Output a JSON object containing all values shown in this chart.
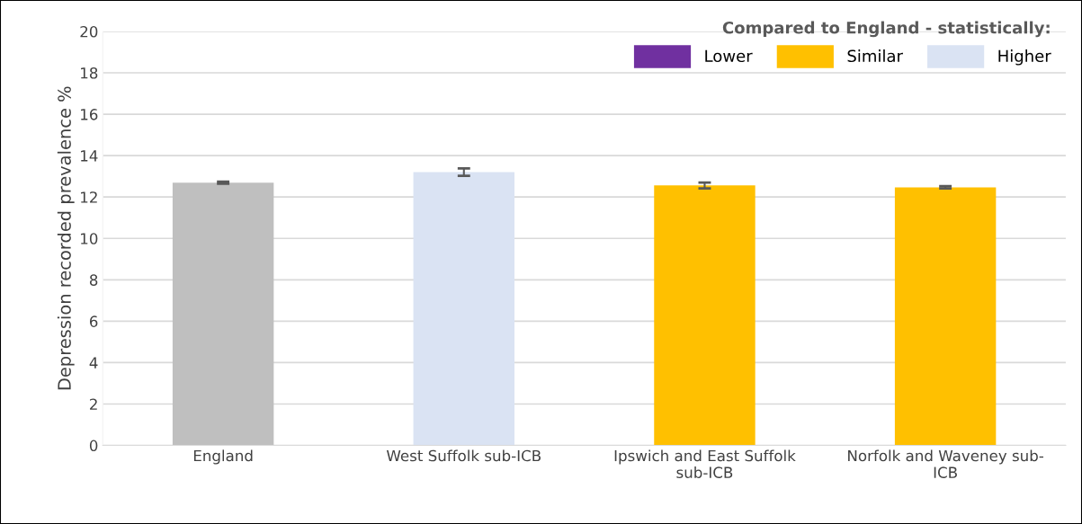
{
  "chart_data": {
    "type": "bar",
    "ylabel": "Depression recorded prevalence %",
    "categories": [
      "England",
      "West Suffolk sub-ICB",
      "Ipswich and East Suffolk\nsub-ICB",
      "Norfolk and Waveney sub-\nICB"
    ],
    "series": [
      {
        "color": "#bfbfbf",
        "values": [
          12.69,
          null,
          null,
          null
        ],
        "errors": [
          0.05,
          null,
          null,
          null
        ]
      },
      {
        "name": "Lower",
        "color": "#7030a0",
        "values": [
          null,
          null,
          null,
          null
        ]
      },
      {
        "name": "Similar",
        "color": "#ffc000",
        "values": [
          null,
          null,
          12.56,
          12.47
        ],
        "errors": [
          null,
          null,
          0.14,
          0.05
        ]
      },
      {
        "name": "Higher",
        "color": "#dae3f3",
        "values": [
          null,
          13.2,
          null,
          null
        ],
        "errors": [
          null,
          0.18,
          null,
          null
        ]
      }
    ],
    "legend_title": "Compared to England - statistically:",
    "legend": "top right",
    "ylim": [
      0,
      20
    ],
    "yticks": [
      0,
      2,
      4,
      6,
      8,
      10,
      12,
      14,
      16,
      18,
      20
    ],
    "grid": "y"
  }
}
